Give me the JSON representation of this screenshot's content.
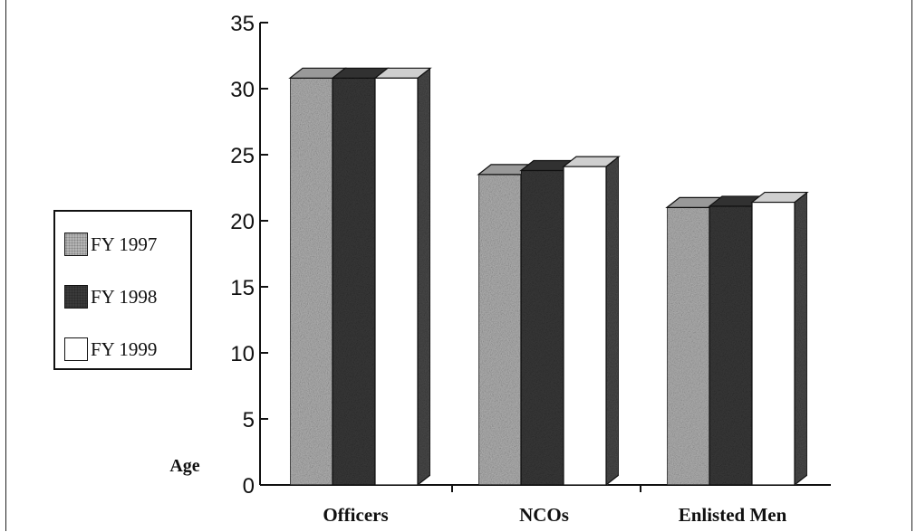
{
  "chart_data": {
    "type": "bar",
    "title": "",
    "xlabel": "",
    "ylabel": "Age",
    "ylim": [
      0,
      35
    ],
    "yticks": [
      0,
      5,
      10,
      15,
      20,
      25,
      30,
      35
    ],
    "categories": [
      "Officers",
      "NCOs",
      "Enlisted Men"
    ],
    "series": [
      {
        "name": "FY 1997",
        "values": [
          30.8,
          23.5,
          21.0
        ],
        "color": "#b4b4b4"
      },
      {
        "name": "FY 1998",
        "values": [
          30.8,
          23.8,
          21.1
        ],
        "color": "#3a3a3a"
      },
      {
        "name": "FY 1999",
        "values": [
          30.8,
          24.1,
          21.4
        ],
        "color": "#ffffff"
      }
    ],
    "legend_position": "left",
    "grid": false,
    "style": "3d-bars"
  }
}
